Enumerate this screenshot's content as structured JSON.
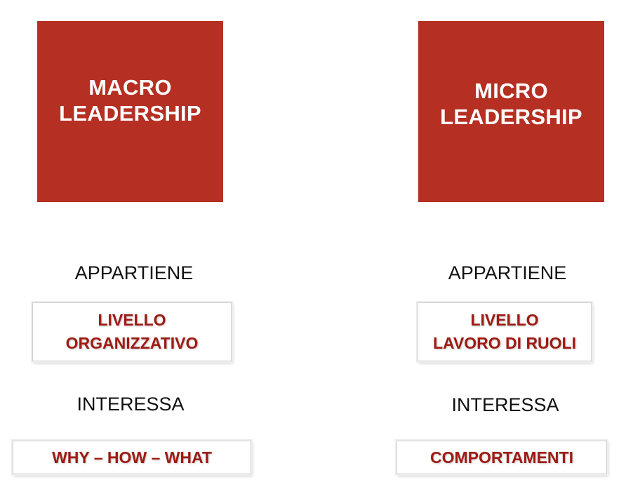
{
  "left": {
    "tile": {
      "line1": "MACRO",
      "line2": "LEADERSHIP"
    },
    "belongs_label": "APPARTIENE",
    "level_box": {
      "line1": "LIVELLO",
      "line2": "ORGANIZZATIVO"
    },
    "concerns_label": "INTERESSA",
    "concerns_box": "WHY – HOW – WHAT"
  },
  "right": {
    "tile": {
      "line1": "MICRO",
      "line2": "LEADERSHIP"
    },
    "belongs_label": "APPARTIENE",
    "level_box": {
      "line1": "LIVELLO",
      "line2": "LAVORO DI RUOLI"
    },
    "concerns_label": "INTERESSA",
    "concerns_box": "COMPORTAMENTI"
  },
  "colors": {
    "tile_fill": "#b52f22",
    "tile_text": "#ffffff",
    "box_text": "#9e1b14",
    "caption_text": "#111111"
  }
}
